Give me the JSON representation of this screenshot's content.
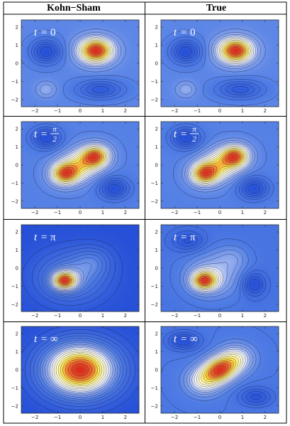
{
  "figure": {
    "columns": [
      "Kohn−Sham",
      "True"
    ],
    "tick_labels_x": [
      "−2",
      "−1",
      "0",
      "1",
      "2"
    ],
    "tick_labels_y": [
      "2",
      "1",
      "0",
      "−1",
      "−2"
    ],
    "rows": [
      {
        "label_var": "t",
        "label_eq": "=",
        "label_value": "0"
      },
      {
        "label_var": "t",
        "label_eq": "=",
        "label_num": "π",
        "label_den": "2"
      },
      {
        "label_var": "t",
        "label_eq": "=",
        "label_value": "π"
      },
      {
        "label_var": "t",
        "label_eq": "=",
        "label_value": "∞"
      }
    ]
  },
  "chart_data": [
    {
      "type": "heatmap",
      "panel": "Kohn−Sham, t = 0",
      "xlim": [
        -2.6,
        2.6
      ],
      "ylim": [
        -2.4,
        2.4
      ],
      "x_ticks": [
        -2,
        -1,
        0,
        1,
        2
      ],
      "y_ticks": [
        -2,
        -1,
        0,
        1,
        2
      ],
      "peaks": [
        {
          "x": 0.7,
          "y": 0.7,
          "amp": 1.0,
          "sx": 0.55,
          "sy": 0.5
        },
        {
          "x": -1.5,
          "y": 0.65,
          "amp": -0.45,
          "sx": 0.45,
          "sy": 0.45
        },
        {
          "x": -1.5,
          "y": -1.45,
          "amp": 0.2,
          "sx": 0.3,
          "sy": 0.3
        },
        {
          "x": 0.9,
          "y": -1.45,
          "amp": -0.35,
          "sx": 0.7,
          "sy": 0.35
        }
      ]
    },
    {
      "type": "heatmap",
      "panel": "True, t = 0",
      "xlim": [
        -2.6,
        2.6
      ],
      "ylim": [
        -2.4,
        2.4
      ],
      "x_ticks": [
        -2,
        -1,
        0,
        1,
        2
      ],
      "y_ticks": [
        -2,
        -1,
        0,
        1,
        2
      ],
      "peaks": [
        {
          "x": 0.7,
          "y": 0.7,
          "amp": 1.0,
          "sx": 0.55,
          "sy": 0.5
        },
        {
          "x": -1.5,
          "y": 0.65,
          "amp": -0.45,
          "sx": 0.45,
          "sy": 0.45
        },
        {
          "x": -1.5,
          "y": -1.45,
          "amp": 0.2,
          "sx": 0.3,
          "sy": 0.3
        },
        {
          "x": 0.9,
          "y": -1.45,
          "amp": -0.35,
          "sx": 0.7,
          "sy": 0.35
        }
      ]
    },
    {
      "type": "heatmap",
      "panel": "Kohn−Sham, t = π/2",
      "xlim": [
        -2.6,
        2.6
      ],
      "ylim": [
        -2.4,
        2.4
      ],
      "x_ticks": [
        -2,
        -1,
        0,
        1,
        2
      ],
      "y_ticks": [
        -2,
        -1,
        0,
        1,
        2
      ],
      "peaks": [
        {
          "x": 0.7,
          "y": 0.5,
          "amp": 0.95,
          "sx": 0.45,
          "sy": 0.45
        },
        {
          "x": -0.7,
          "y": -0.5,
          "amp": 0.95,
          "sx": 0.45,
          "sy": 0.45
        },
        {
          "x": 0.0,
          "y": 0.0,
          "amp": 0.6,
          "sx": 0.6,
          "sy": 0.6
        },
        {
          "x": -1.5,
          "y": 1.5,
          "amp": -0.5,
          "sx": 0.45,
          "sy": 0.4
        },
        {
          "x": 1.5,
          "y": -1.3,
          "amp": -0.5,
          "sx": 0.45,
          "sy": 0.4
        }
      ]
    },
    {
      "type": "heatmap",
      "panel": "True, t = π/2",
      "xlim": [
        -2.6,
        2.6
      ],
      "ylim": [
        -2.4,
        2.4
      ],
      "x_ticks": [
        -2,
        -1,
        0,
        1,
        2
      ],
      "y_ticks": [
        -2,
        -1,
        0,
        1,
        2
      ],
      "peaks": [
        {
          "x": 0.7,
          "y": 0.5,
          "amp": 0.95,
          "sx": 0.45,
          "sy": 0.45
        },
        {
          "x": -0.7,
          "y": -0.5,
          "amp": 0.95,
          "sx": 0.45,
          "sy": 0.45
        },
        {
          "x": 0.0,
          "y": 0.0,
          "amp": 0.6,
          "sx": 0.6,
          "sy": 0.6
        },
        {
          "x": -1.5,
          "y": 1.5,
          "amp": -0.5,
          "sx": 0.45,
          "sy": 0.4
        },
        {
          "x": 1.5,
          "y": -1.3,
          "amp": -0.5,
          "sx": 0.45,
          "sy": 0.4
        }
      ]
    },
    {
      "type": "heatmap",
      "panel": "Kohn−Sham, t = π",
      "xlim": [
        -2.6,
        2.6
      ],
      "ylim": [
        -2.4,
        2.4
      ],
      "x_ticks": [
        -2,
        -1,
        0,
        1,
        2
      ],
      "y_ticks": [
        -2,
        -1,
        0,
        1,
        2
      ],
      "peaks": [
        {
          "x": -0.7,
          "y": -0.7,
          "amp": 1.0,
          "sx": 0.4,
          "sy": 0.38
        },
        {
          "x": -0.4,
          "y": -0.5,
          "amp": 0.5,
          "sx": 1.1,
          "sy": 1.0
        },
        {
          "x": 0.6,
          "y": 0.4,
          "amp": 0.25,
          "sx": 0.6,
          "sy": 0.6
        }
      ]
    },
    {
      "type": "heatmap",
      "panel": "True, t = π",
      "xlim": [
        -2.6,
        2.6
      ],
      "ylim": [
        -2.4,
        2.4
      ],
      "x_ticks": [
        -2,
        -1,
        0,
        1,
        2
      ],
      "y_ticks": [
        -2,
        -1,
        0,
        1,
        2
      ],
      "peaks": [
        {
          "x": -0.7,
          "y": -0.7,
          "amp": 1.0,
          "sx": 0.4,
          "sy": 0.38
        },
        {
          "x": -0.3,
          "y": -0.4,
          "amp": 0.45,
          "sx": 0.9,
          "sy": 0.9
        },
        {
          "x": 1.5,
          "y": -0.9,
          "amp": -0.45,
          "sx": 0.35,
          "sy": 0.45
        },
        {
          "x": -1.4,
          "y": 1.5,
          "amp": -0.35,
          "sx": 0.5,
          "sy": 0.4
        },
        {
          "x": 0.6,
          "y": 0.6,
          "amp": 0.2,
          "sx": 0.5,
          "sy": 0.5
        }
      ]
    },
    {
      "type": "heatmap",
      "panel": "Kohn−Sham, t = ∞",
      "xlim": [
        -2.6,
        2.6
      ],
      "ylim": [
        -2.4,
        2.4
      ],
      "x_ticks": [
        -2,
        -1,
        0,
        1,
        2
      ],
      "y_ticks": [
        -2,
        -1,
        0,
        1,
        2
      ],
      "peaks": [
        {
          "x": 0.0,
          "y": 0.0,
          "amp": 1.0,
          "sx": 1.15,
          "sy": 1.05
        }
      ]
    },
    {
      "type": "heatmap",
      "panel": "True, t = ∞",
      "xlim": [
        -2.6,
        2.6
      ],
      "ylim": [
        -2.4,
        2.4
      ],
      "x_ticks": [
        -2,
        -1,
        0,
        1,
        2
      ],
      "y_ticks": [
        -2,
        -1,
        0,
        1,
        2
      ],
      "peaks": [
        {
          "x": 0.0,
          "y": 0.0,
          "amp": 0.9,
          "sx": 0.5,
          "sy": 0.5
        },
        {
          "x": 0.7,
          "y": 0.6,
          "amp": 0.6,
          "sx": 0.55,
          "sy": 0.55
        },
        {
          "x": -0.7,
          "y": -0.6,
          "amp": 0.6,
          "sx": 0.55,
          "sy": 0.55
        },
        {
          "x": -1.6,
          "y": 1.6,
          "amp": -0.4,
          "sx": 0.5,
          "sy": 0.35
        },
        {
          "x": 1.6,
          "y": -1.5,
          "amp": -0.35,
          "sx": 0.5,
          "sy": 0.35
        }
      ]
    }
  ]
}
